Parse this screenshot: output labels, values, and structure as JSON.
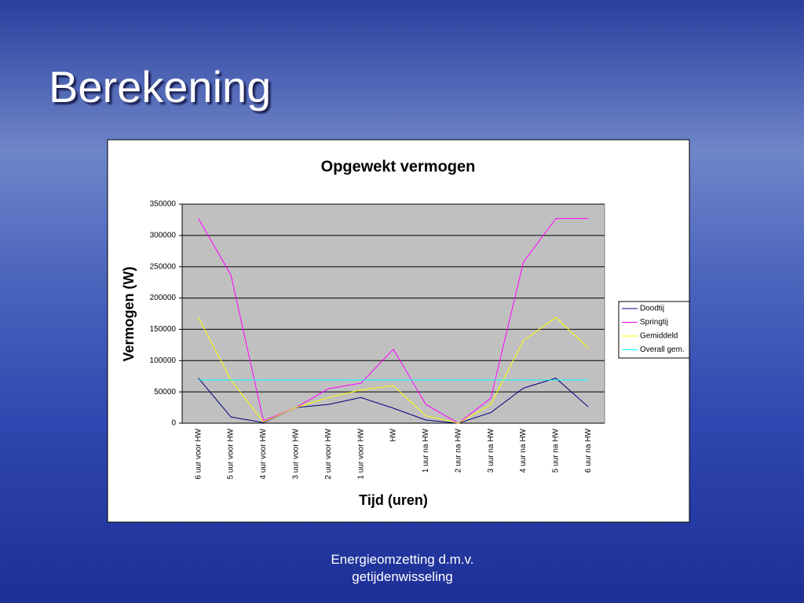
{
  "slide_title": "Berekening",
  "footer": "Energieomzetting d.m.v. getijdenwisseling",
  "chart_data": {
    "type": "line",
    "title": "Opgewekt vermogen",
    "x_label": "Tijd (uren)",
    "y_label": "Vermogen (W)",
    "categories": [
      "6 uur voor HW",
      "5 uur voor HW",
      "4 uur voor HW",
      "3 uur voor HW",
      "2 uur voor HW",
      "1 uur voor HW",
      "HW",
      "1 uur na HW",
      "2 uur na HW",
      "3 uur na HW",
      "4 uur na HW",
      "5 uur na HW",
      "6 uur na HW"
    ],
    "series": [
      {
        "name": "Doodtij",
        "color": "#000080",
        "values": [
          72000,
          10000,
          1000,
          25000,
          30000,
          41000,
          24000,
          5000,
          0,
          17000,
          56000,
          72000,
          26000
        ]
      },
      {
        "name": "Springtij",
        "color": "#ff00ff",
        "values": [
          327000,
          237000,
          4000,
          25000,
          55000,
          64000,
          118000,
          30000,
          0,
          40000,
          257000,
          327000,
          327000
        ]
      },
      {
        "name": "Gemiddeld",
        "color": "#ffff00",
        "values": [
          169000,
          69000,
          2000,
          25000,
          41000,
          53000,
          60000,
          12000,
          0,
          30000,
          132000,
          169000,
          120000
        ]
      },
      {
        "name": "Overall gem.",
        "color": "#00ffff",
        "values": [
          69000,
          69000,
          69000,
          69000,
          69000,
          69000,
          69000,
          69000,
          69000,
          69000,
          69000,
          69000,
          69000
        ]
      }
    ],
    "ylim": [
      0,
      350000
    ],
    "yticks": [
      0,
      50000,
      100000,
      150000,
      200000,
      250000,
      300000,
      350000
    ],
    "grid": true,
    "plot_background": "#c0c0c0",
    "legend": "right"
  }
}
